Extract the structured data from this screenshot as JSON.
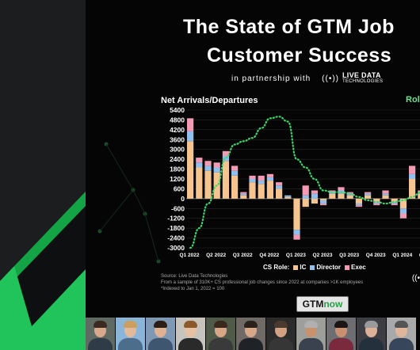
{
  "header": {
    "title_line1": "The State of GTM Job",
    "title_line2": "Customer Success",
    "partnership_text": "in partnership with",
    "partner_logo_line1": "LIVE DATA",
    "partner_logo_line2": "TECHNOLOGIES"
  },
  "chart_title": "Net Arrivals/Departures",
  "line_series_label": "Role",
  "legend": {
    "label": "CS Role:",
    "items": [
      "IC",
      "Director",
      "Exec"
    ]
  },
  "notes": [
    "Source: Live Data Technologies",
    "From a sample of 310K+ CS professional job changes since 2022 at companies >1K employees",
    "*Indexed to Jan 1, 2022 = 100"
  ],
  "badge": {
    "part1": "GTM",
    "part2": "now"
  },
  "colors": {
    "ic": "#f6c48e",
    "director": "#8fc0ee",
    "exec": "#f39bb5",
    "line": "#3ed66a",
    "background": "#050505",
    "sidebar": "#1c1d1f",
    "accent_green": "#17b14d"
  },
  "icons": {
    "partner_logo_icon": "broadcast-icon",
    "corner_icon": "broadcast-icon"
  },
  "chart_data": {
    "type": "bar",
    "stacked": true,
    "ylim": [
      -3000,
      5400
    ],
    "yticks": [
      "5400",
      "4800",
      "4200",
      "3600",
      "3000",
      "2400",
      "1800",
      "1200",
      "600",
      "0",
      "-600",
      "-1200",
      "-1800",
      "-2400",
      "-3000"
    ],
    "xticks": [
      "Q1 2022",
      "Q2 2022",
      "Q3 2022",
      "Q4 2022",
      "Q1 2023",
      "Q2 2023",
      "Q3 2023",
      "Q4 2023",
      "Q1 2024",
      "Q2 2024",
      "Q"
    ],
    "months": 32,
    "series": [
      {
        "name": "IC",
        "values": [
          3500,
          1900,
          1700,
          1600,
          2300,
          1400,
          200,
          1000,
          900,
          1100,
          600,
          100,
          -1900,
          -500,
          -300,
          -100,
          300,
          300,
          200,
          -300,
          200,
          -200,
          200,
          -200,
          -600,
          1200,
          300,
          500,
          1400,
          1200,
          1500,
          1000
        ]
      },
      {
        "name": "Director",
        "values": [
          600,
          300,
          300,
          300,
          300,
          300,
          100,
          200,
          200,
          200,
          200,
          100,
          -300,
          200,
          300,
          -200,
          100,
          200,
          100,
          -100,
          100,
          -100,
          100,
          -100,
          -300,
          300,
          100,
          200,
          300,
          300,
          300,
          200
        ]
      },
      {
        "name": "Exec",
        "values": [
          800,
          300,
          300,
          300,
          300,
          300,
          100,
          200,
          300,
          200,
          200,
          0,
          -300,
          600,
          200,
          -100,
          100,
          200,
          100,
          -100,
          100,
          -100,
          200,
          -100,
          -300,
          500,
          100,
          200,
          300,
          300,
          500,
          100
        ]
      }
    ],
    "line": {
      "name": "Role",
      "style": "dotted",
      "values": [
        -3000,
        -1800,
        -300,
        800,
        2500,
        3300,
        3500,
        3700,
        4300,
        4900,
        5000,
        4700,
        2400,
        1900,
        1200,
        500,
        400,
        400,
        300,
        100,
        -100,
        -200,
        -300,
        -200,
        -100,
        100,
        400,
        800,
        1400,
        2000,
        2800,
        3700
      ]
    }
  }
}
